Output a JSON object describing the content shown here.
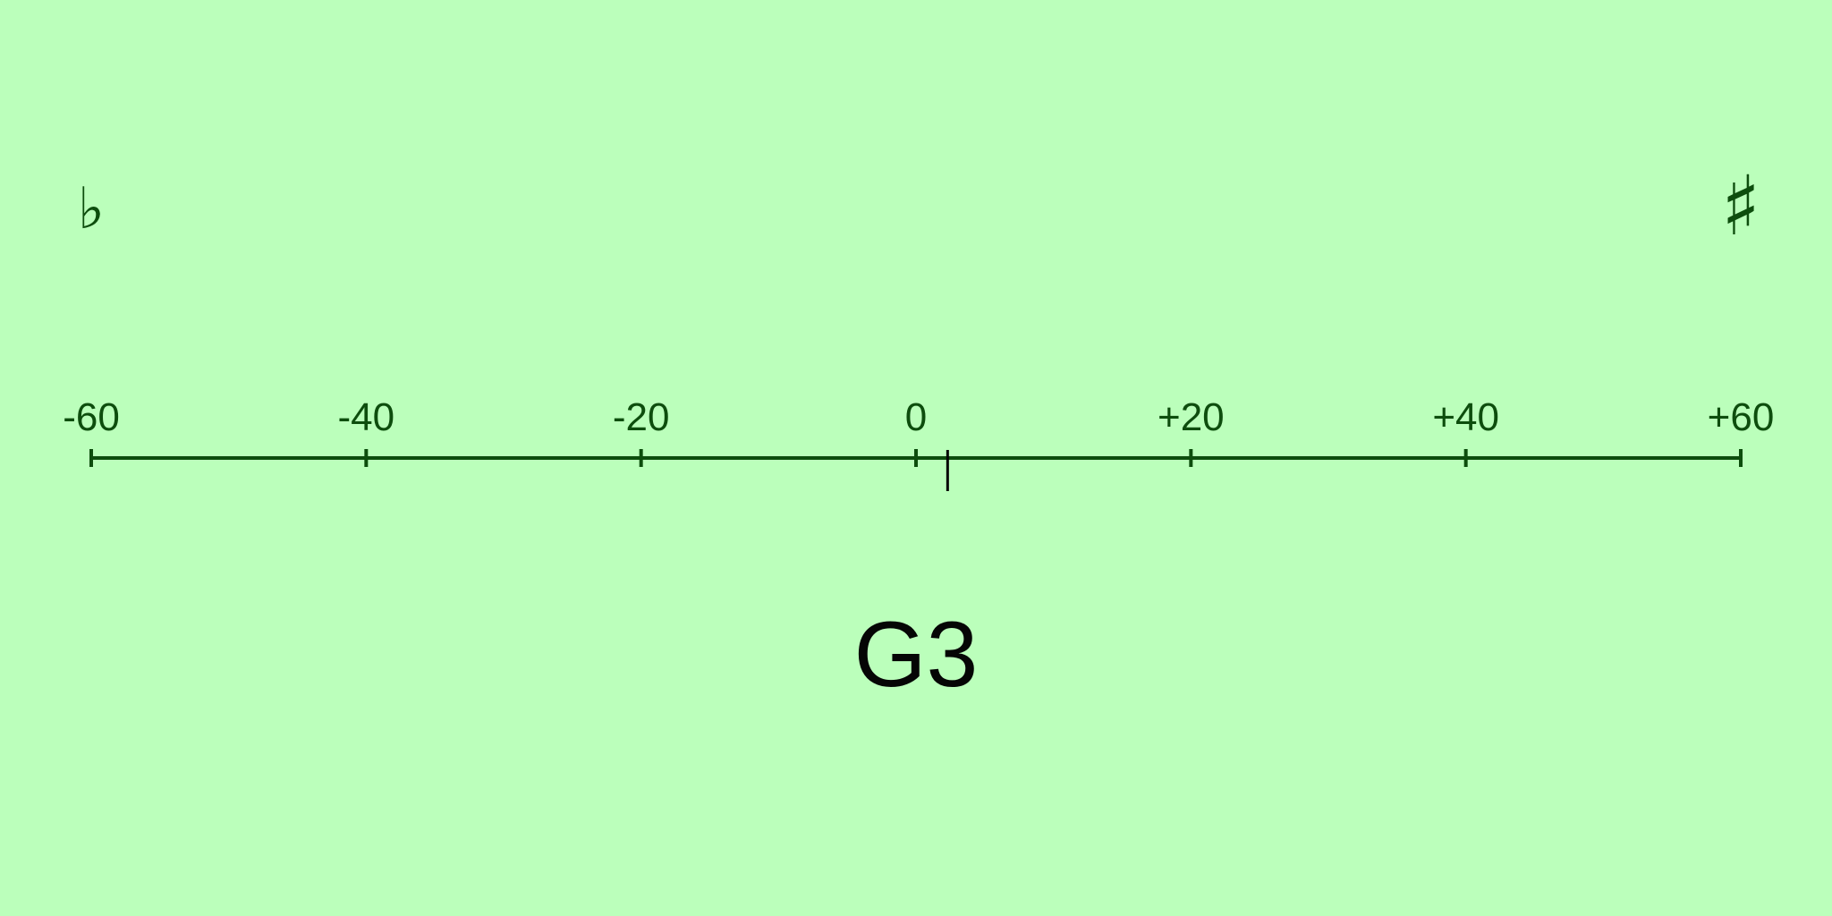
{
  "tuner": {
    "flat_symbol": "♭",
    "sharp_symbol": "♯",
    "note": "G3",
    "cents_offset": 2.3,
    "scale": {
      "min": -60,
      "max": 60,
      "ticks": [
        {
          "value": -60,
          "label": "-60"
        },
        {
          "value": -40,
          "label": "-40"
        },
        {
          "value": -20,
          "label": "-20"
        },
        {
          "value": 0,
          "label": "0"
        },
        {
          "value": 20,
          "label": "+20"
        },
        {
          "value": 40,
          "label": "+40"
        },
        {
          "value": 60,
          "label": "+60"
        }
      ]
    },
    "colors": {
      "background": "#bbffbb",
      "scale": "#0d4d0d",
      "needle": "#050505",
      "note": "#050505"
    }
  }
}
